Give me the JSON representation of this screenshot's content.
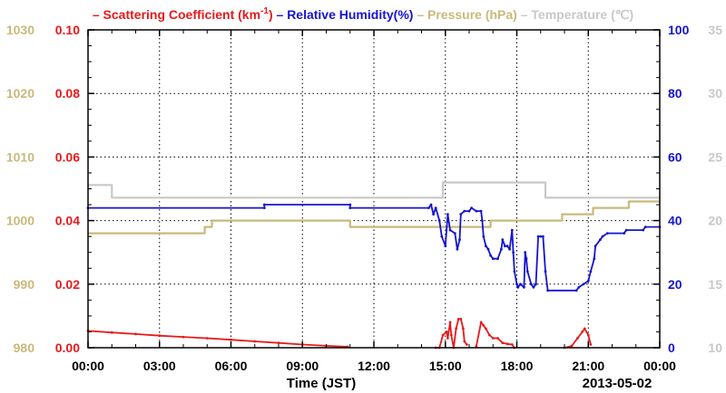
{
  "chart_data": {
    "type": "line",
    "legend": {
      "placement": "top",
      "items": [
        {
          "symbol": "–",
          "text": "Scattering Coefficient (km",
          "sup": "-1",
          "close": ")",
          "color": "#e8191b"
        },
        {
          "symbol": "–",
          "text": "Relative Humidity(%)",
          "color": "#1414d2"
        },
        {
          "symbol": "–",
          "text": "Pressure (hPa)",
          "color": "#c9b97a"
        },
        {
          "symbol": "–",
          "text": "Temperature (℃)",
          "color": "#c8c8c8"
        }
      ]
    },
    "xlabel": "Time (JST)",
    "date_label": "2013-05-02",
    "x_ticks": [
      "00:00",
      "03:00",
      "06:00",
      "09:00",
      "12:00",
      "15:00",
      "18:00",
      "21:00",
      "00:00"
    ],
    "xlim_hours": [
      0,
      24
    ],
    "grid": true,
    "axes": {
      "pressure": {
        "side": "left-outer",
        "color": "#c9b97a",
        "range": [
          980,
          1030
        ],
        "ticks": [
          "980",
          "990",
          "1000",
          "1010",
          "1020",
          "1030"
        ]
      },
      "scattering": {
        "side": "left-inner",
        "color": "#e8191b",
        "range": [
          0,
          0.1
        ],
        "ticks": [
          "0.00",
          "0.02",
          "0.04",
          "0.06",
          "0.08",
          "0.10"
        ]
      },
      "humidity": {
        "side": "right-inner",
        "color": "#1414d2",
        "range": [
          0,
          100
        ],
        "ticks": [
          "0",
          "20",
          "40",
          "60",
          "80",
          "100"
        ]
      },
      "temperature": {
        "side": "right-outer",
        "color": "#c8c8c8",
        "range": [
          10,
          35
        ],
        "ticks": [
          "10",
          "15",
          "20",
          "25",
          "30",
          "35"
        ]
      }
    },
    "series": [
      {
        "key": "temperature",
        "name": "Temperature",
        "color": "#c8c8c8",
        "axis": "temperature",
        "step": true,
        "points": [
          [
            0,
            22.8
          ],
          [
            1.0,
            22.8
          ],
          [
            1.0,
            21.8
          ],
          [
            14.9,
            21.8
          ],
          [
            14.9,
            23.0
          ],
          [
            19.2,
            23.0
          ],
          [
            19.2,
            21.8
          ],
          [
            24,
            21.8
          ]
        ]
      },
      {
        "key": "pressure",
        "name": "Pressure",
        "color": "#c9b97a",
        "axis": "pressure",
        "step": true,
        "points": [
          [
            0,
            998
          ],
          [
            4.9,
            998
          ],
          [
            4.9,
            999
          ],
          [
            5.2,
            999
          ],
          [
            5.2,
            1000
          ],
          [
            11.0,
            1000
          ],
          [
            11.0,
            999
          ],
          [
            16.9,
            999
          ],
          [
            16.9,
            1000
          ],
          [
            19.9,
            1000
          ],
          [
            19.9,
            1001
          ],
          [
            21.2,
            1001
          ],
          [
            21.2,
            1002
          ],
          [
            22.7,
            1002
          ],
          [
            22.7,
            1003
          ],
          [
            24,
            1003
          ]
        ]
      },
      {
        "key": "humidity",
        "name": "Relative Humidity",
        "color": "#1414d2",
        "axis": "humidity",
        "step": false,
        "points": [
          [
            0,
            44
          ],
          [
            7.4,
            44
          ],
          [
            7.4,
            45
          ],
          [
            11.0,
            45
          ],
          [
            11.0,
            44
          ],
          [
            14.3,
            44
          ],
          [
            14.4,
            45
          ],
          [
            14.5,
            42
          ],
          [
            14.6,
            44
          ],
          [
            14.75,
            40
          ],
          [
            14.85,
            35
          ],
          [
            15.0,
            32
          ],
          [
            15.1,
            42
          ],
          [
            15.2,
            37
          ],
          [
            15.4,
            36
          ],
          [
            15.5,
            31
          ],
          [
            15.6,
            34
          ],
          [
            15.65,
            42
          ],
          [
            15.8,
            43
          ],
          [
            16.0,
            43
          ],
          [
            16.1,
            44
          ],
          [
            16.3,
            43
          ],
          [
            16.5,
            43
          ],
          [
            16.55,
            40
          ],
          [
            16.6,
            35
          ],
          [
            16.7,
            32
          ],
          [
            16.8,
            31
          ],
          [
            16.9,
            29
          ],
          [
            17.0,
            28
          ],
          [
            17.2,
            28
          ],
          [
            17.35,
            31
          ],
          [
            17.4,
            34
          ],
          [
            17.5,
            32
          ],
          [
            17.6,
            32
          ],
          [
            17.7,
            31
          ],
          [
            17.8,
            37
          ],
          [
            17.85,
            30
          ],
          [
            17.9,
            24
          ],
          [
            18.0,
            20
          ],
          [
            18.05,
            19
          ],
          [
            18.15,
            20
          ],
          [
            18.3,
            19
          ],
          [
            18.35,
            30
          ],
          [
            18.4,
            28
          ],
          [
            18.45,
            24
          ],
          [
            18.6,
            20
          ],
          [
            18.7,
            19
          ],
          [
            18.8,
            20
          ],
          [
            18.9,
            35
          ],
          [
            19.0,
            35
          ],
          [
            19.1,
            35
          ],
          [
            19.2,
            24
          ],
          [
            19.3,
            18
          ],
          [
            20.5,
            18
          ],
          [
            20.6,
            19
          ],
          [
            20.8,
            20
          ],
          [
            21.0,
            21
          ],
          [
            21.1,
            24
          ],
          [
            21.25,
            28
          ],
          [
            21.3,
            32
          ],
          [
            21.5,
            34
          ],
          [
            21.6,
            35
          ],
          [
            21.8,
            36
          ],
          [
            22.5,
            36
          ],
          [
            22.6,
            37
          ],
          [
            23.3,
            37
          ],
          [
            23.4,
            38
          ],
          [
            24,
            38
          ]
        ]
      },
      {
        "key": "scattering",
        "name": "Scattering Coefficient",
        "color": "#e8191b",
        "axis": "scattering",
        "step": false,
        "points": [
          [
            0,
            0.0053
          ],
          [
            1.0,
            0.0048
          ],
          [
            2.0,
            0.0043
          ],
          [
            3.0,
            0.0038
          ],
          [
            4.0,
            0.0034
          ],
          [
            5.0,
            0.003
          ],
          [
            6.0,
            0.0025
          ],
          [
            7.0,
            0.002
          ],
          [
            8.0,
            0.0015
          ],
          [
            9.0,
            0.001
          ],
          [
            10.0,
            0.0006
          ],
          [
            10.9,
            0.0003
          ]
        ],
        "segments": [
          [
            [
              14.6,
              0.0
            ],
            [
              14.75,
              0.0
            ],
            [
              14.9,
              0.004
            ],
            [
              15.05,
              0.005
            ],
            [
              15.1,
              0.003
            ],
            [
              15.2,
              0.008
            ],
            [
              15.25,
              0.004
            ],
            [
              15.35,
              0.0
            ],
            [
              15.45,
              0.006
            ],
            [
              15.55,
              0.009
            ],
            [
              15.65,
              0.009
            ],
            [
              15.75,
              0.006
            ],
            [
              15.8,
              0.002
            ],
            [
              15.9,
              0.001
            ]
          ],
          [
            [
              16.3,
              0.0005
            ],
            [
              16.5,
              0.008
            ],
            [
              16.6,
              0.007
            ],
            [
              16.7,
              0.006
            ],
            [
              16.85,
              0.004
            ],
            [
              17.0,
              0.003
            ],
            [
              17.2,
              0.003
            ],
            [
              17.4,
              0.0015
            ],
            [
              17.6,
              0.0012
            ],
            [
              17.8,
              0.001
            ],
            [
              17.9,
              0.0
            ]
          ],
          [
            [
              20.0,
              0.0
            ],
            [
              20.3,
              0.0005
            ],
            [
              20.55,
              0.003
            ],
            [
              20.75,
              0.005
            ],
            [
              20.85,
              0.006
            ],
            [
              21.0,
              0.004
            ],
            [
              21.1,
              0.001
            ]
          ]
        ]
      }
    ]
  }
}
